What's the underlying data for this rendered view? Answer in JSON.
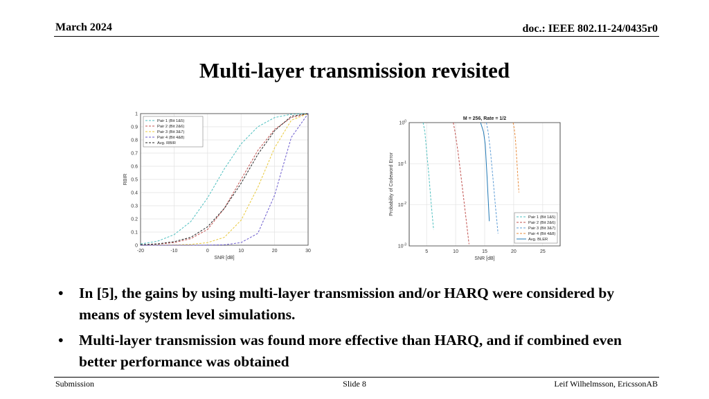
{
  "header": {
    "date": "March 2024",
    "doc": "doc.: IEEE 802.11-24/0435r0"
  },
  "title": "Multi-layer transmission revisited",
  "bullets": [
    "In [5], the gains by using multi-layer transmission and/or HARQ were considered by means of system level simulations.",
    "Multi-layer transmission was found more effective than HARQ, and if combined even better performance was obtained"
  ],
  "footer": {
    "left": "Submission",
    "center": "Slide 8",
    "right": "Leif Wilhelmsson, EricssonAB"
  },
  "colors": {
    "pair1": "#4dbfbf",
    "pair2": "#c0504d",
    "pair3": "#e8c83a",
    "pair4": "#6a5acd",
    "avg": "#222222",
    "avgBler": "#1f77b4"
  },
  "chart_data": [
    {
      "type": "line",
      "title": "",
      "xlabel": "SNR [dB]",
      "ylabel": "RBIR",
      "xlim": [
        -20,
        30
      ],
      "ylim": [
        0,
        1
      ],
      "x_ticks": [
        "-20",
        "-10",
        "0",
        "10",
        "20",
        "30"
      ],
      "y_ticks": [
        "0",
        "0.1",
        "0.2",
        "0.3",
        "0.4",
        "0.5",
        "0.6",
        "0.7",
        "0.8",
        "0.9",
        "1"
      ],
      "grid": true,
      "legend_position": "top-left",
      "series": [
        {
          "name": "Pair 1 (Bit 1&5)",
          "x": [
            -20,
            -15,
            -10,
            -5,
            0,
            5,
            10,
            15,
            20,
            25,
            30
          ],
          "y": [
            0.01,
            0.03,
            0.08,
            0.18,
            0.36,
            0.58,
            0.77,
            0.9,
            0.97,
            0.995,
            1
          ]
        },
        {
          "name": "Pair 2 (Bit 2&6)",
          "x": [
            -20,
            -15,
            -10,
            -5,
            0,
            5,
            10,
            15,
            20,
            25,
            30
          ],
          "y": [
            0.003,
            0.008,
            0.02,
            0.05,
            0.12,
            0.28,
            0.5,
            0.72,
            0.88,
            0.97,
            1
          ]
        },
        {
          "name": "Pair 3 (Bit 3&7)",
          "x": [
            -20,
            -10,
            -5,
            0,
            5,
            10,
            15,
            20,
            25,
            30
          ],
          "y": [
            0,
            0.002,
            0.006,
            0.02,
            0.06,
            0.19,
            0.44,
            0.74,
            0.95,
            1
          ]
        },
        {
          "name": "Pair 4 (Bit 4&8)",
          "x": [
            -20,
            -5,
            0,
            5,
            10,
            15,
            20,
            25,
            30
          ],
          "y": [
            0,
            0,
            0.001,
            0.003,
            0.02,
            0.09,
            0.38,
            0.82,
            1
          ]
        },
        {
          "name": "Avg. RBIR",
          "x": [
            -20,
            -15,
            -10,
            -5,
            0,
            5,
            10,
            15,
            20,
            25,
            30
          ],
          "y": [
            0.004,
            0.01,
            0.027,
            0.06,
            0.14,
            0.28,
            0.47,
            0.69,
            0.87,
            0.98,
            1
          ]
        }
      ]
    },
    {
      "type": "line",
      "title": "M = 256, Rate = 1/2",
      "xlabel": "SNR [dB]",
      "ylabel": "Probability of Codeword Error",
      "xlim": [
        2,
        28
      ],
      "ylim": [
        0.001,
        1
      ],
      "y_scale": "log",
      "x_ticks": [
        "5",
        "10",
        "15",
        "20",
        "25"
      ],
      "y_ticks": [
        "10^0",
        "10^-1",
        "10^-2",
        "10^-3"
      ],
      "grid": true,
      "legend_position": "bottom-right",
      "series": [
        {
          "name": "Pair 1 (Bit 1&5)",
          "x": [
            4.4,
            4.7,
            5.0,
            5.4,
            5.8,
            6.2
          ],
          "y": [
            1,
            0.6,
            0.2,
            0.05,
            0.01,
            0.0025
          ]
        },
        {
          "name": "Pair 2 (Bit 2&6)",
          "x": [
            9.6,
            9.9,
            10.4,
            11.0,
            11.7,
            12.3
          ],
          "y": [
            1,
            0.6,
            0.2,
            0.04,
            0.006,
            0.0011
          ]
        },
        {
          "name": "Pair 3 (Bit 3&7)",
          "x": [
            15.3,
            15.6,
            16.0,
            16.4,
            16.9,
            17.3
          ],
          "y": [
            1,
            0.6,
            0.2,
            0.05,
            0.008,
            0.002
          ]
        },
        {
          "name": "Pair 4 (Bit 4&8)",
          "x": [
            19.9,
            20.1,
            20.3,
            20.5,
            20.7,
            20.9
          ],
          "y": [
            1,
            0.7,
            0.4,
            0.15,
            0.05,
            0.02
          ]
        },
        {
          "name": "Avg. BLER",
          "x": [
            14.3,
            14.8,
            15.1,
            15.4,
            15.8
          ],
          "y": [
            1,
            0.6,
            0.3,
            0.05,
            0.004
          ]
        }
      ]
    }
  ]
}
